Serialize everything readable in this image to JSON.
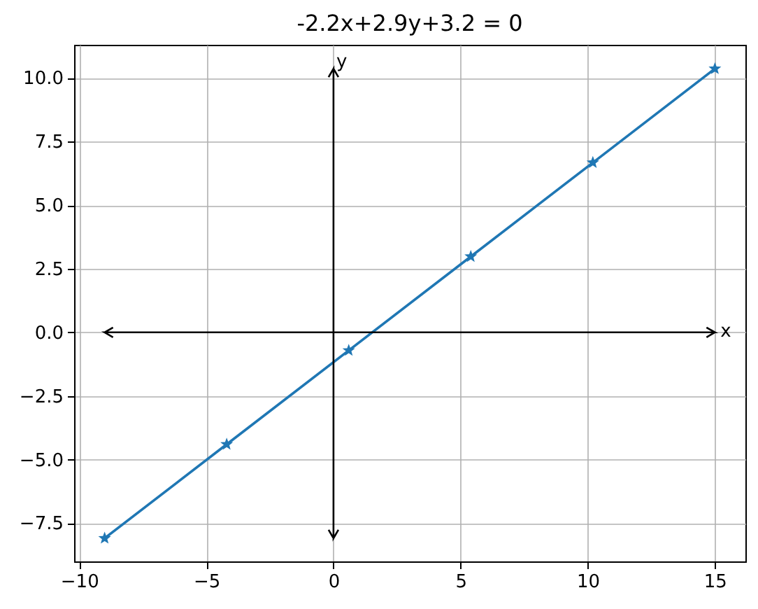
{
  "chart_data": {
    "type": "line",
    "title": "-2.2x+2.9y+3.2 = 0",
    "x": [
      -9,
      -4.2,
      0.6,
      5.4,
      10.2,
      15
    ],
    "series": [
      {
        "color": "#1f77b4",
        "values": [
          -8.09,
          -4.4,
          -0.71,
          2.98,
          6.67,
          10.36
        ]
      }
    ],
    "marker": "star",
    "line_style": "solid",
    "grid": true,
    "xlim": [
      -10.2,
      16.2
    ],
    "xticks": [
      {
        "value": -10,
        "label": "−10"
      },
      {
        "value": -5,
        "label": "−5"
      },
      0,
      5,
      10,
      15
    ],
    "ylim": [
      -9.0,
      11.3
    ],
    "yticks": [
      {
        "value": -7.5,
        "label": "−7.5"
      },
      {
        "value": -5,
        "label": "−5.0"
      },
      {
        "value": -2.5,
        "label": "−2.5"
      },
      {
        "value": 0,
        "label": "0.0"
      },
      2.5,
      {
        "value": 5,
        "label": "5.0"
      },
      7.5,
      {
        "value": 10,
        "label": "10.0"
      }
    ],
    "ref_lines": [
      {
        "axis": "y",
        "value": 0,
        "label": "x",
        "color": "#000000"
      },
      {
        "axis": "x",
        "value": 0,
        "label": "y",
        "color": "#000000"
      }
    ]
  }
}
